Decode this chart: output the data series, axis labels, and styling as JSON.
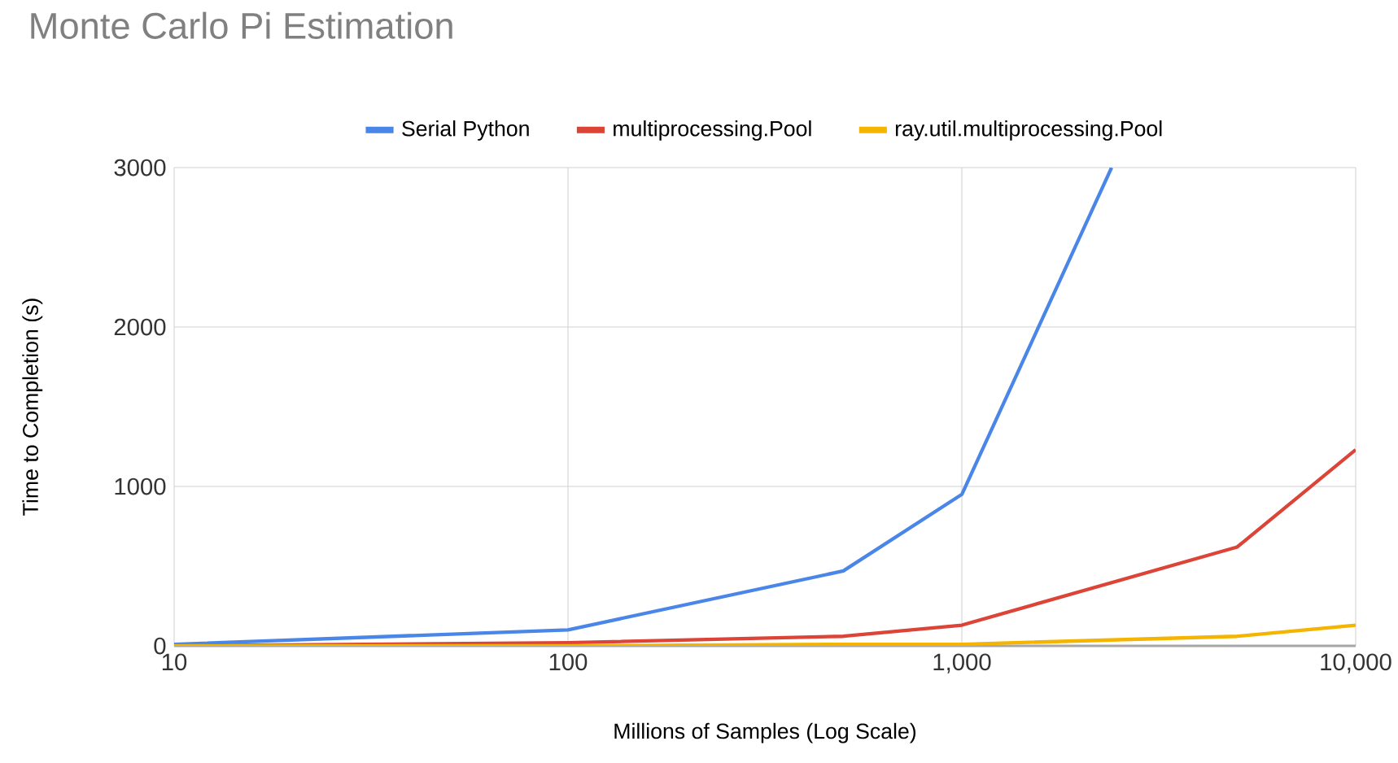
{
  "chart_data": {
    "type": "line",
    "title": "Monte Carlo Pi Estimation",
    "xlabel": "Millions of Samples (Log Scale)",
    "ylabel": "Time to Completion (s)",
    "log": "x",
    "xlim": [
      10,
      10000
    ],
    "ylim": [
      0,
      3000
    ],
    "xticks": [
      10,
      100,
      {
        "value": 1000,
        "label": "1,000"
      },
      {
        "value": 10000,
        "label": "10,000"
      }
    ],
    "yticks": [
      0,
      1000,
      2000,
      3000
    ],
    "grid": true,
    "legend": "top",
    "marker": "none",
    "line_style": "solid",
    "series": [
      {
        "name": "Serial Python",
        "color": "#4a86e8",
        "x": [
          10,
          100,
          500,
          1000,
          2400
        ],
        "values": [
          10,
          100,
          470,
          950,
          3000
        ]
      },
      {
        "name": "multiprocessing.Pool",
        "color": "#db4437",
        "x": [
          10,
          100,
          500,
          1000,
          5000,
          10000
        ],
        "values": [
          0,
          20,
          60,
          130,
          620,
          1230
        ]
      },
      {
        "name": "ray.util.multiprocessing.Pool",
        "color": "#f4b400",
        "x": [
          10,
          100,
          500,
          1000,
          5000,
          10000
        ],
        "values": [
          0,
          0,
          10,
          10,
          60,
          130
        ]
      }
    ]
  }
}
